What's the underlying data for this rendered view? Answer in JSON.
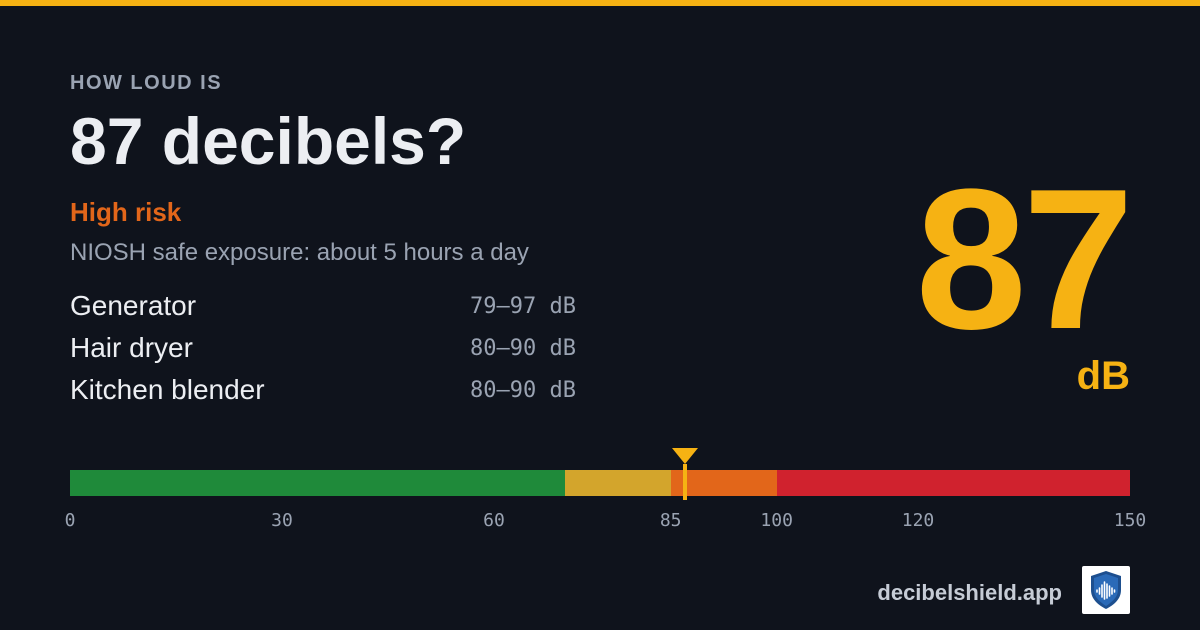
{
  "header": {
    "eyebrow": "HOW LOUD IS",
    "headline": "87 decibels?",
    "risk_label": "High risk",
    "exposure_text": "NIOSH safe exposure: about 5 hours a day"
  },
  "examples": [
    {
      "name": "Generator",
      "range": "79–97 dB"
    },
    {
      "name": "Hair dryer",
      "range": "80–90 dB"
    },
    {
      "name": "Kitchen blender",
      "range": "80–90 dB"
    }
  ],
  "reading": {
    "value": "87",
    "unit": "dB",
    "value_numeric": 87
  },
  "scale": {
    "min": 0,
    "max": 150,
    "ticks": [
      "0",
      "30",
      "60",
      "85",
      "100",
      "120",
      "150"
    ],
    "tick_values": [
      0,
      30,
      60,
      85,
      100,
      120,
      150
    ],
    "bands": [
      {
        "from": 0,
        "to": 70,
        "color": "#1f8a3a"
      },
      {
        "from": 70,
        "to": 85,
        "color": "#d3a52c"
      },
      {
        "from": 85,
        "to": 100,
        "color": "#e2661a"
      },
      {
        "from": 100,
        "to": 150,
        "color": "#d0222e"
      }
    ]
  },
  "colors": {
    "accent": "#f6b213",
    "risk": "#e2661a",
    "background": "#0f131c"
  },
  "footer": {
    "brand": "decibelshield.app",
    "logo_icon": "shield-soundwave-icon"
  }
}
